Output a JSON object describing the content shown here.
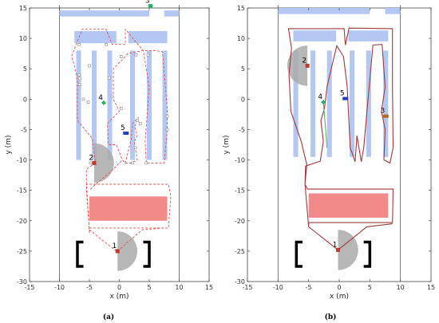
{
  "figure": {
    "panels": [
      {
        "caption": "(a)",
        "chart_data": {
          "type": "scatter",
          "xlabel": "x (m)",
          "ylabel": "y (m)",
          "xlim": [
            -15,
            15
          ],
          "ylim": [
            -30,
            15
          ],
          "xticks": [
            -15,
            -10,
            -5,
            0,
            5,
            10,
            15
          ],
          "yticks": [
            -30,
            -25,
            -20,
            -15,
            -10,
            -5,
            0,
            5,
            10,
            15
          ],
          "grid": false,
          "colors": {
            "shelf": "#b3c7f2",
            "table": "#f28a8a",
            "path": "#e25050",
            "waypoint": "#888888",
            "boundary": "#555555",
            "sensor": "#aaaaaa"
          },
          "boundary": {
            "x": [
              -10,
              10
            ],
            "y": [
              -30,
              15.5
            ]
          },
          "shelves": [
            {
              "x": [
                -10,
                5
              ],
              "y": [
                13.6,
                14.6
              ]
            },
            {
              "x": [
                7.5,
                10
              ],
              "y": [
                13.6,
                14.6
              ]
            },
            {
              "x": [
                -7.5,
                -0.5
              ],
              "y": [
                9.2,
                11.2
              ]
            },
            {
              "x": [
                1.5,
                8
              ],
              "y": [
                9.2,
                11.2
              ]
            },
            {
              "x": [
                -7.2,
                -6.4
              ],
              "y": [
                -10,
                8
              ]
            },
            {
              "x": [
                -4.6,
                -3.8
              ],
              "y": [
                -10,
                8
              ]
            },
            {
              "x": [
                -2,
                -1.2
              ],
              "y": [
                -10,
                8
              ]
            },
            {
              "x": [
                1.8,
                2.6
              ],
              "y": [
                -10,
                8
              ]
            },
            {
              "x": [
                4.6,
                5.4
              ],
              "y": [
                -10,
                8
              ]
            },
            {
              "x": [
                7.2,
                8
              ],
              "y": [
                -10,
                8
              ]
            }
          ],
          "table": {
            "x": [
              -5,
              8
            ],
            "y": [
              -20,
              -16
            ]
          },
          "brackets": [
            {
              "side": "left",
              "x": [
                -7,
                -6
              ],
              "y": [
                -27.5,
                -23.5
              ]
            },
            {
              "side": "right",
              "x": [
                4,
                5
              ],
              "y": [
                -27.5,
                -23.5
              ]
            }
          ],
          "path": [
            [
              -0.5,
              -25
            ],
            [
              -5,
              -21.5
            ],
            [
              -5.5,
              -15
            ],
            [
              -5.5,
              -11.5
            ],
            [
              -4,
              -10.5
            ],
            [
              -4.5,
              -6.5
            ],
            [
              -7,
              -3.5
            ],
            [
              -7,
              3
            ],
            [
              -7.5,
              5.5
            ],
            [
              -8,
              7
            ],
            [
              -7.2,
              9
            ],
            [
              -6.2,
              11.5
            ],
            [
              -2.2,
              11.5
            ],
            [
              -1.2,
              9
            ],
            [
              1,
              9
            ],
            [
              1,
              11.5
            ],
            [
              4,
              8
            ],
            [
              4.5,
              5
            ],
            [
              5,
              2
            ],
            [
              4.3,
              -7
            ],
            [
              4.5,
              -10.5
            ],
            [
              7.5,
              -10.5
            ],
            [
              8,
              -5
            ],
            [
              8,
              -1.5
            ],
            [
              7.2,
              7.8
            ],
            [
              6,
              8
            ],
            [
              4,
              8
            ],
            [
              1.4,
              7.5
            ],
            [
              0.5,
              6.5
            ],
            [
              -1,
              5
            ],
            [
              -1,
              0
            ],
            [
              0,
              -2
            ],
            [
              -2,
              -4
            ],
            [
              -1.8,
              -7.5
            ],
            [
              -0.5,
              -7.5
            ],
            [
              0.5,
              -10
            ],
            [
              1,
              -10.5
            ],
            [
              2,
              -6.5
            ],
            [
              2.2,
              -4
            ],
            [
              3.2,
              -3
            ],
            [
              2.6,
              -4.5
            ],
            [
              3,
              -6
            ],
            [
              2.5,
              -7
            ],
            [
              3,
              -10
            ],
            [
              2,
              -10.5
            ],
            [
              1,
              -10.5
            ],
            [
              0.5,
              -10
            ],
            [
              -1.5,
              -12
            ],
            [
              -4,
              -14
            ],
            [
              -5,
              -15
            ]
          ],
          "path_loop": [
            [
              -5,
              -22
            ],
            [
              -5.5,
              -14
            ],
            [
              8.2,
              -14
            ],
            [
              8.6,
              -16
            ],
            [
              8.2,
              -21.2
            ],
            [
              -5,
              -21.2
            ],
            [
              -5,
              -22
            ]
          ],
          "path_bottom": [
            [
              -0.3,
              -25
            ],
            [
              3.8,
              -21.5
            ],
            [
              7.5,
              -21.2
            ]
          ],
          "waypoints": [
            [
              -6.7,
              9
            ],
            [
              -6.7,
              4
            ],
            [
              -6.6,
              3.4
            ],
            [
              -6.6,
              2.4
            ],
            [
              -6,
              0
            ],
            [
              -5,
              5.5
            ],
            [
              -5.2,
              -0.5
            ],
            [
              -2.2,
              9
            ],
            [
              -1.7,
              3.5
            ],
            [
              -1.2,
              0.5
            ],
            [
              0.3,
              7
            ],
            [
              2.8,
              7.3
            ],
            [
              4.8,
              7.3
            ],
            [
              3,
              -3.5
            ],
            [
              3.5,
              -4
            ],
            [
              2.7,
              -8
            ],
            [
              2.2,
              -10.5
            ],
            [
              4.5,
              -10.5
            ],
            [
              8,
              -5
            ],
            [
              8,
              -2.8
            ],
            [
              -4.8,
              -10.5
            ],
            [
              0.3,
              -1.5
            ]
          ],
          "landmarks": [
            {
              "label": "1",
              "x": -0.3,
              "y": -25,
              "color": "#c0392b",
              "shape": "square"
            },
            {
              "label": "2",
              "x": -4.2,
              "y": -10.5,
              "color": "#c0392b",
              "shape": "square"
            },
            {
              "label": "3",
              "x": 5.2,
              "y": 15.3,
              "color": "#27ae60",
              "shape": "square"
            },
            {
              "label": "4",
              "x": -2.6,
              "y": -0.6,
              "color": "#27ae60",
              "shape": "diamond"
            },
            {
              "label": "5",
              "x": 1.1,
              "y": -5.6,
              "color": "#1f3fbf",
              "shape": "rect"
            }
          ],
          "sensors": [
            {
              "x": -0.3,
              "y": -25,
              "start": -90,
              "end": 90,
              "r": 3.3
            },
            {
              "x": -4.2,
              "y": -10.5,
              "start": -90,
              "end": 90,
              "r": 3.3
            }
          ]
        }
      },
      {
        "caption": "(b)",
        "chart_data": {
          "type": "scatter",
          "xlabel": "x (m)",
          "ylabel": "y (m)",
          "xlim": [
            -15,
            15
          ],
          "ylim": [
            -30,
            15
          ],
          "xticks": [
            -15,
            -10,
            -5,
            0,
            5,
            10,
            15
          ],
          "yticks": [
            -30,
            -25,
            -20,
            -15,
            -10,
            -5,
            0,
            5,
            10,
            15
          ],
          "grid": false,
          "colors": {
            "shelf": "#b3c7f2",
            "table": "#f28a8a",
            "path": "#9e3a3a",
            "path_green": "#4caf50",
            "boundary": "#555555",
            "sensor": "#aaaaaa"
          },
          "boundary": {
            "x": [
              -10,
              10
            ],
            "y": [
              -30,
              15.5
            ]
          },
          "shelves": [
            {
              "x": [
                -10,
                5
              ],
              "y": [
                14,
                15
              ]
            },
            {
              "x": [
                7.5,
                10
              ],
              "y": [
                14,
                15
              ]
            },
            {
              "x": [
                -7.5,
                -0.5
              ],
              "y": [
                9.5,
                11.3
              ]
            },
            {
              "x": [
                1.5,
                8
              ],
              "y": [
                9.5,
                11.3
              ]
            },
            {
              "x": [
                -7.5,
                -6.7
              ],
              "y": [
                -9.5,
                8
              ]
            },
            {
              "x": [
                -4.7,
                -3.9
              ],
              "y": [
                -9.5,
                8
              ]
            },
            {
              "x": [
                -2,
                -1.2
              ],
              "y": [
                -9.5,
                8
              ]
            },
            {
              "x": [
                1.7,
                2.5
              ],
              "y": [
                -9.5,
                8
              ]
            },
            {
              "x": [
                4.4,
                5.2
              ],
              "y": [
                -9.5,
                8
              ]
            },
            {
              "x": [
                7.2,
                8
              ],
              "y": [
                -9.5,
                8
              ]
            }
          ],
          "table": {
            "x": [
              -5,
              8
            ],
            "y": [
              -19.5,
              -15.5
            ]
          },
          "brackets": [
            {
              "side": "left",
              "x": [
                -7,
                -6
              ],
              "y": [
                -27.5,
                -23.5
              ]
            },
            {
              "side": "right",
              "x": [
                4,
                5
              ],
              "y": [
                -27.5,
                -23.5
              ]
            }
          ],
          "path": [
            [
              -0.2,
              -24.8
            ],
            [
              -5,
              -21
            ],
            [
              -5.6,
              -14
            ],
            [
              -5.3,
              -10.8
            ],
            [
              -6.2,
              -7
            ],
            [
              -7.9,
              -2
            ],
            [
              -8.2,
              4
            ],
            [
              -7.8,
              8.4
            ],
            [
              -8.3,
              11.6
            ],
            [
              0.8,
              11.6
            ],
            [
              1,
              8.9
            ],
            [
              1.6,
              11.7
            ],
            [
              8.7,
              11.6
            ],
            [
              8.7,
              2
            ],
            [
              8.8,
              -8
            ],
            [
              8.3,
              -10.5
            ],
            [
              7.3,
              -10
            ],
            [
              7.5,
              -5
            ],
            [
              6.9,
              -2
            ],
            [
              7.5,
              2
            ],
            [
              7,
              9
            ],
            [
              5.5,
              8.9
            ],
            [
              4,
              -8
            ],
            [
              3.6,
              -10.3
            ],
            [
              2.9,
              -6
            ],
            [
              2.6,
              -10.3
            ],
            [
              1.8,
              -8
            ],
            [
              1.3,
              2
            ],
            [
              0.7,
              7
            ],
            [
              -0.4,
              8.8
            ],
            [
              -1.3,
              5
            ],
            [
              -2,
              2
            ],
            [
              -2.4,
              -1.5
            ],
            [
              -3,
              -3.5
            ],
            [
              -2.6,
              -7
            ],
            [
              -3.1,
              -10.2
            ],
            [
              -5.5,
              -11
            ],
            [
              -5.6,
              -14
            ],
            [
              -5.2,
              -14.8
            ],
            [
              8.8,
              -14.8
            ],
            [
              8.7,
              -20.3
            ],
            [
              -5,
              -20.3
            ],
            [
              -5,
              -21
            ]
          ],
          "path_green": [
            [
              -2.6,
              -0.5
            ],
            [
              -2.3,
              -4
            ],
            [
              -2,
              -8
            ]
          ],
          "path_bottom": [
            [
              -0.2,
              -24.8
            ],
            [
              4.5,
              -21
            ],
            [
              8.7,
              -20.5
            ]
          ],
          "landmarks": [
            {
              "label": "1",
              "x": -0.2,
              "y": -24.8,
              "color": "#c0392b",
              "shape": "square"
            },
            {
              "label": "2",
              "x": -5.2,
              "y": 5.5,
              "color": "#c0392b",
              "shape": "square"
            },
            {
              "label": "3",
              "x": 7.6,
              "y": -2.8,
              "color": "#b5651d",
              "shape": "rect"
            },
            {
              "label": "4",
              "x": -2.6,
              "y": -0.5,
              "color": "#27ae60",
              "shape": "diamond"
            },
            {
              "label": "5",
              "x": 1,
              "y": 0.1,
              "color": "#1f3fbf",
              "shape": "rect"
            }
          ],
          "sensors": [
            {
              "x": -0.2,
              "y": -24.8,
              "start": -90,
              "end": 90,
              "r": 3.3
            },
            {
              "x": -5.2,
              "y": 5.5,
              "start": 90,
              "end": 270,
              "r": 3.3
            }
          ]
        }
      }
    ]
  }
}
